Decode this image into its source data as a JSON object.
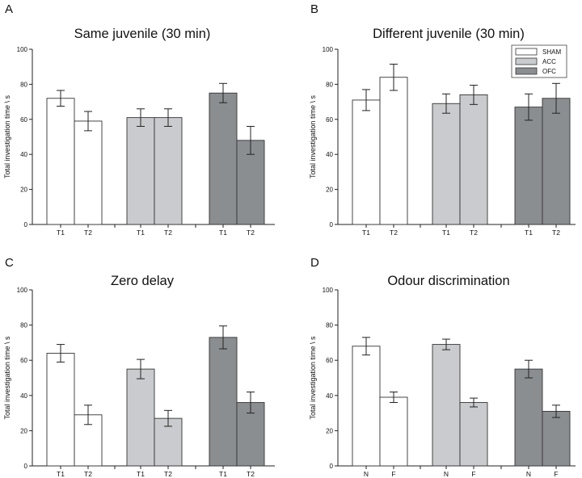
{
  "figure": {
    "letters": [
      "A",
      "B",
      "C",
      "D"
    ]
  },
  "colors": {
    "SHAM": "#ffffff",
    "ACC": "#c9cbce",
    "OFC": "#8b8e91",
    "stroke": "#333333"
  },
  "legend": {
    "entries": [
      "SHAM",
      "ACC",
      "OFC"
    ],
    "placement": "top-right of panel B"
  },
  "chart_data": [
    {
      "letter": "A",
      "type": "bar",
      "title": "Same juvenile (30 min)",
      "ylabel": "Total investigation time \\ s",
      "xlabel": "",
      "ylim": [
        0,
        100
      ],
      "yticks": [
        0,
        20,
        40,
        60,
        80,
        100
      ],
      "categories": [
        "T1",
        "T2"
      ],
      "series": [
        {
          "name": "SHAM",
          "values": [
            72,
            59
          ],
          "errors": [
            4.5,
            5.5
          ]
        },
        {
          "name": "ACC",
          "values": [
            61,
            61
          ],
          "errors": [
            5,
            5
          ]
        },
        {
          "name": "OFC",
          "values": [
            75,
            48
          ],
          "errors": [
            5.5,
            8
          ]
        }
      ]
    },
    {
      "letter": "B",
      "type": "bar",
      "title": "Different juvenile (30 min)",
      "ylabel": "Total investigation time \\ s",
      "xlabel": "",
      "ylim": [
        0,
        100
      ],
      "yticks": [
        0,
        20,
        40,
        60,
        80,
        100
      ],
      "categories": [
        "T1",
        "T2"
      ],
      "series": [
        {
          "name": "SHAM",
          "values": [
            71,
            84
          ],
          "errors": [
            6,
            7.5
          ]
        },
        {
          "name": "ACC",
          "values": [
            69,
            74
          ],
          "errors": [
            5.5,
            5.5
          ]
        },
        {
          "name": "OFC",
          "values": [
            67,
            72
          ],
          "errors": [
            7.5,
            8.5
          ]
        }
      ]
    },
    {
      "letter": "C",
      "type": "bar",
      "title": "Zero delay",
      "ylabel": "Total investigation time \\ s",
      "xlabel": "",
      "ylim": [
        0,
        100
      ],
      "yticks": [
        0,
        20,
        40,
        60,
        80,
        100
      ],
      "categories": [
        "T1",
        "T2"
      ],
      "series": [
        {
          "name": "SHAM",
          "values": [
            64,
            29
          ],
          "errors": [
            5,
            5.5
          ]
        },
        {
          "name": "ACC",
          "values": [
            55,
            27
          ],
          "errors": [
            5.5,
            4.5
          ]
        },
        {
          "name": "OFC",
          "values": [
            73,
            36
          ],
          "errors": [
            6.5,
            6
          ]
        }
      ]
    },
    {
      "letter": "D",
      "type": "bar",
      "title": "Odour discrimination",
      "ylabel": "Total investigation time \\ s",
      "xlabel": "",
      "ylim": [
        0,
        100
      ],
      "yticks": [
        0,
        20,
        40,
        60,
        80,
        100
      ],
      "categories": [
        "N",
        "F"
      ],
      "series": [
        {
          "name": "SHAM",
          "values": [
            68,
            39
          ],
          "errors": [
            5,
            3
          ]
        },
        {
          "name": "ACC",
          "values": [
            69,
            36
          ],
          "errors": [
            3,
            2.5
          ]
        },
        {
          "name": "OFC",
          "values": [
            55,
            31
          ],
          "errors": [
            5,
            3.5
          ]
        }
      ]
    }
  ]
}
